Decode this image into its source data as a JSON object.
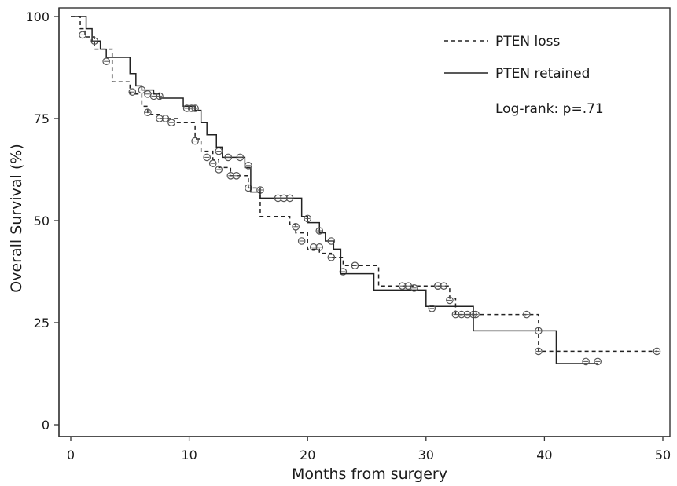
{
  "chart_data": {
    "type": "line",
    "subtype": "kaplan-meier",
    "title": "",
    "xlabel": "Months from surgery",
    "ylabel": "Overall Survival (%)",
    "xlim": [
      0,
      50
    ],
    "ylim": [
      0,
      100
    ],
    "xticks": [
      0,
      10,
      20,
      30,
      40,
      50
    ],
    "yticks": [
      0,
      25,
      50,
      75,
      100
    ],
    "grid": false,
    "legend_position": "top-right",
    "annotation": "Log-rank: p=.71",
    "series": [
      {
        "name": "PTEN loss",
        "line_style": "dashed",
        "color": "#222222",
        "steps": [
          [
            0,
            100
          ],
          [
            0.8,
            97
          ],
          [
            1.2,
            95
          ],
          [
            2,
            92
          ],
          [
            3.5,
            84
          ],
          [
            5,
            81
          ],
          [
            6,
            78
          ],
          [
            6.5,
            76
          ],
          [
            7.5,
            75
          ],
          [
            9,
            74
          ],
          [
            10.5,
            70
          ],
          [
            11,
            67
          ],
          [
            12,
            65
          ],
          [
            12.5,
            63
          ],
          [
            13.5,
            61
          ],
          [
            15,
            58
          ],
          [
            16,
            51
          ],
          [
            17.5,
            51
          ],
          [
            18.5,
            49
          ],
          [
            19,
            47
          ],
          [
            20,
            43
          ],
          [
            21,
            42
          ],
          [
            22,
            41
          ],
          [
            23,
            39
          ],
          [
            25.5,
            39
          ],
          [
            26,
            34
          ],
          [
            31,
            34
          ],
          [
            32,
            31
          ],
          [
            32.5,
            27
          ],
          [
            39,
            27
          ],
          [
            39.5,
            18
          ],
          [
            49.5,
            18
          ]
        ],
        "censors": [
          [
            1,
            95.5
          ],
          [
            5.2,
            81.5
          ],
          [
            6.5,
            76.5
          ],
          [
            7.5,
            75
          ],
          [
            8,
            75
          ],
          [
            8.5,
            74
          ],
          [
            10.5,
            69.5
          ],
          [
            11.5,
            65.5
          ],
          [
            12,
            64
          ],
          [
            12.5,
            62.5
          ],
          [
            13.5,
            61
          ],
          [
            14,
            61
          ],
          [
            15,
            58
          ],
          [
            16,
            57.5
          ],
          [
            19,
            48.5
          ],
          [
            19.5,
            45
          ],
          [
            20.5,
            43.5
          ],
          [
            21,
            43.5
          ],
          [
            22,
            41
          ],
          [
            23,
            37.5
          ],
          [
            24,
            39
          ],
          [
            28.5,
            34
          ],
          [
            31,
            34
          ],
          [
            31.5,
            34
          ],
          [
            32,
            30.5
          ],
          [
            32.5,
            27
          ],
          [
            33,
            27
          ],
          [
            33.5,
            27
          ],
          [
            34,
            27
          ],
          [
            38.5,
            27
          ],
          [
            39.5,
            18
          ],
          [
            49.5,
            18
          ]
        ]
      },
      {
        "name": "PTEN retained",
        "line_style": "solid",
        "color": "#222222",
        "steps": [
          [
            0,
            100
          ],
          [
            1.3,
            97
          ],
          [
            1.8,
            94
          ],
          [
            2.5,
            92
          ],
          [
            3,
            90
          ],
          [
            5,
            86
          ],
          [
            5.5,
            83
          ],
          [
            6,
            82
          ],
          [
            7,
            81
          ],
          [
            7.5,
            80
          ],
          [
            9.5,
            78
          ],
          [
            10.5,
            77
          ],
          [
            11,
            74
          ],
          [
            11.5,
            71
          ],
          [
            12.3,
            68
          ],
          [
            12.8,
            65.5
          ],
          [
            14.7,
            63
          ],
          [
            15.2,
            57
          ],
          [
            16,
            55.5
          ],
          [
            19.5,
            51
          ],
          [
            20,
            49.5
          ],
          [
            21,
            47
          ],
          [
            21.5,
            45
          ],
          [
            22.2,
            43
          ],
          [
            22.8,
            37
          ],
          [
            25.6,
            33
          ],
          [
            29.5,
            33
          ],
          [
            30,
            29
          ],
          [
            34,
            23
          ],
          [
            39.5,
            23
          ],
          [
            41,
            15
          ],
          [
            44.5,
            15
          ]
        ],
        "censors": [
          [
            2,
            94
          ],
          [
            3,
            89
          ],
          [
            6,
            82
          ],
          [
            6.5,
            81
          ],
          [
            7,
            80.5
          ],
          [
            7.5,
            80.5
          ],
          [
            9.8,
            77.5
          ],
          [
            10.2,
            77.5
          ],
          [
            10.5,
            77.5
          ],
          [
            12.5,
            67
          ],
          [
            13.3,
            65.5
          ],
          [
            14.3,
            65.5
          ],
          [
            15,
            63.5
          ],
          [
            17.5,
            55.5
          ],
          [
            18,
            55.5
          ],
          [
            18.5,
            55.5
          ],
          [
            20,
            50.5
          ],
          [
            21,
            47.5
          ],
          [
            22,
            45
          ],
          [
            28,
            34
          ],
          [
            29,
            33.5
          ],
          [
            30.5,
            28.5
          ],
          [
            31,
            34
          ],
          [
            34.2,
            27
          ],
          [
            39.5,
            23
          ],
          [
            43.5,
            15.5
          ],
          [
            44.5,
            15.5
          ]
        ]
      }
    ]
  }
}
